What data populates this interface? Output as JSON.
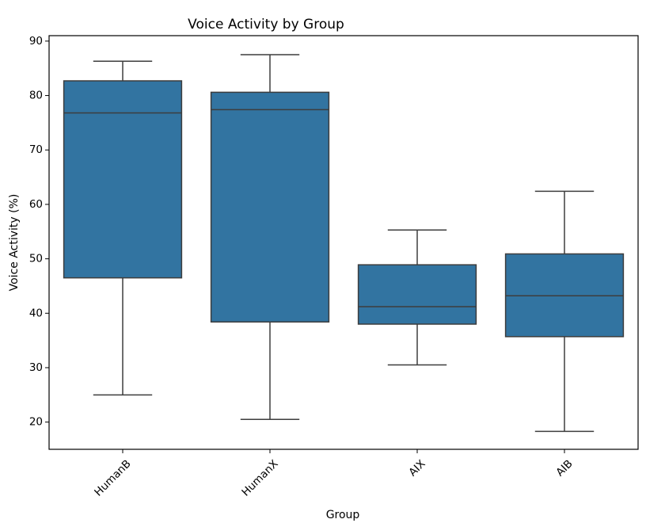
{
  "chart_data": {
    "type": "box",
    "title": "Voice Activity by Group",
    "xlabel": "Group",
    "ylabel": "Voice Activity (%)",
    "ylim": [
      15,
      91
    ],
    "yticks": [
      20,
      30,
      40,
      50,
      60,
      70,
      80,
      90
    ],
    "categories": [
      "HumanB",
      "HumanX",
      "AIX",
      "AIB"
    ],
    "boxes": [
      {
        "category": "HumanB",
        "whisker_low": 25.0,
        "q1": 46.5,
        "median": 76.8,
        "q3": 82.7,
        "whisker_high": 86.3
      },
      {
        "category": "HumanX",
        "whisker_low": 20.5,
        "q1": 38.4,
        "median": 77.4,
        "q3": 80.6,
        "whisker_high": 87.5
      },
      {
        "category": "AIX",
        "whisker_low": 30.5,
        "q1": 38.0,
        "median": 41.2,
        "q3": 48.9,
        "whisker_high": 55.3
      },
      {
        "category": "AIB",
        "whisker_low": 18.3,
        "q1": 35.7,
        "median": 43.2,
        "q3": 50.9,
        "whisker_high": 62.4
      }
    ],
    "colors": {
      "box_fill": "#3274a1",
      "line": "#3d3d3d",
      "frame": "#000000"
    }
  }
}
